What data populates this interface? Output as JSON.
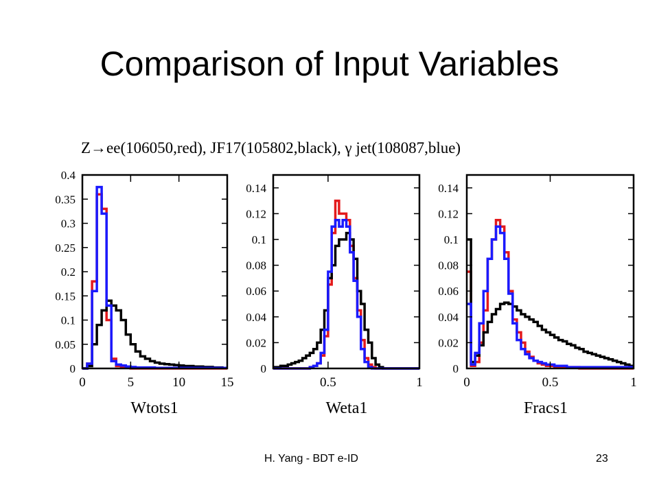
{
  "slide": {
    "title": "Comparison of Input Variables",
    "footer_left": "H. Yang - BDT e-ID",
    "page_number": "23"
  },
  "figure_header": "Z→ee(106050,red), JF17(105802,black), γ jet(108087,blue)",
  "chart_data": [
    {
      "type": "line",
      "xlabel": "Wtots1",
      "xlim": [
        0,
        15
      ],
      "ylim": [
        0,
        0.4
      ],
      "xticks": [
        0,
        5,
        10,
        15
      ],
      "yticks": [
        0,
        0.05,
        0.1,
        0.15,
        0.2,
        0.25,
        0.3,
        0.35,
        0.4
      ],
      "bin_edges": [
        0,
        0.5,
        1,
        1.5,
        2,
        2.5,
        3,
        3.5,
        4,
        4.5,
        5,
        5.5,
        6,
        6.5,
        7,
        7.5,
        8,
        8.5,
        9,
        9.5,
        10,
        10.5,
        11,
        11.5,
        12,
        12.5,
        13,
        13.5,
        14,
        14.5,
        15
      ],
      "series": [
        {
          "color": "#e31a1c",
          "values": [
            0,
            0.01,
            0.18,
            0.36,
            0.33,
            0.1,
            0.02,
            0.005,
            0.002,
            0.001,
            0,
            0,
            0,
            0,
            0,
            0,
            0,
            0,
            0,
            0,
            0,
            0,
            0,
            0,
            0,
            0,
            0,
            0,
            0,
            0
          ]
        },
        {
          "color": "#000000",
          "values": [
            0,
            0.005,
            0.05,
            0.09,
            0.12,
            0.14,
            0.13,
            0.12,
            0.1,
            0.07,
            0.05,
            0.035,
            0.025,
            0.02,
            0.015,
            0.012,
            0.01,
            0.009,
            0.008,
            0.007,
            0.006,
            0.005,
            0.005,
            0.004,
            0.004,
            0.003,
            0.003,
            0.002,
            0.002,
            0.001
          ]
        },
        {
          "color": "#1a1aff",
          "values": [
            0,
            0.01,
            0.16,
            0.375,
            0.32,
            0.13,
            0.015,
            0.008,
            0.006,
            0.004,
            0.003,
            0.002,
            0.002,
            0.002,
            0.002,
            0.001,
            0.001,
            0.001,
            0.001,
            0.001,
            0.001,
            0.001,
            0.001,
            0.001,
            0.001,
            0.001,
            0.001,
            0.001,
            0.001,
            0.001
          ]
        }
      ]
    },
    {
      "type": "line",
      "xlabel": "Weta1",
      "xlim": [
        0.2,
        1.0
      ],
      "ylim": [
        0,
        0.15
      ],
      "xticks": [
        0.5,
        1.0
      ],
      "xtick_labels": [
        "0.5",
        "1"
      ],
      "yticks": [
        0,
        0.02,
        0.04,
        0.06,
        0.08,
        0.1,
        0.12,
        0.14
      ],
      "bin_edges": [
        0.2,
        0.22,
        0.24,
        0.26,
        0.28,
        0.3,
        0.32,
        0.34,
        0.36,
        0.38,
        0.4,
        0.42,
        0.44,
        0.46,
        0.48,
        0.5,
        0.52,
        0.54,
        0.56,
        0.58,
        0.6,
        0.62,
        0.64,
        0.66,
        0.68,
        0.7,
        0.72,
        0.74,
        0.76,
        0.78,
        0.8,
        0.82,
        0.84,
        0.86,
        0.88,
        0.9,
        0.92,
        0.94,
        0.96,
        0.98,
        1.0
      ],
      "series": [
        {
          "color": "#e31a1c",
          "values": [
            0,
            0,
            0,
            0,
            0,
            0,
            0,
            0,
            0,
            0,
            0.001,
            0.002,
            0.004,
            0.01,
            0.025,
            0.065,
            0.105,
            0.13,
            0.12,
            0.12,
            0.115,
            0.095,
            0.07,
            0.045,
            0.022,
            0.008,
            0.003,
            0.001,
            0,
            0,
            0,
            0,
            0,
            0,
            0,
            0,
            0,
            0,
            0,
            0
          ]
        },
        {
          "color": "#000000",
          "values": [
            0.001,
            0.001,
            0.002,
            0.002,
            0.003,
            0.004,
            0.005,
            0.006,
            0.008,
            0.01,
            0.012,
            0.015,
            0.02,
            0.03,
            0.045,
            0.07,
            0.08,
            0.095,
            0.1,
            0.1,
            0.105,
            0.1,
            0.085,
            0.06,
            0.05,
            0.03,
            0.02,
            0.008,
            0.003,
            0.001,
            0,
            0,
            0,
            0,
            0,
            0,
            0,
            0,
            0,
            0
          ]
        },
        {
          "color": "#1a1aff",
          "values": [
            0,
            0,
            0,
            0,
            0,
            0,
            0,
            0,
            0,
            0,
            0.001,
            0.002,
            0.004,
            0.012,
            0.03,
            0.075,
            0.11,
            0.115,
            0.11,
            0.115,
            0.11,
            0.09,
            0.068,
            0.04,
            0.015,
            0.005,
            0.001,
            0,
            0,
            0,
            0,
            0,
            0,
            0,
            0,
            0,
            0,
            0,
            0,
            0
          ]
        }
      ]
    },
    {
      "type": "line",
      "xlabel": "Fracs1",
      "xlim": [
        0,
        1
      ],
      "ylim": [
        0,
        0.15
      ],
      "xticks": [
        0,
        0.5,
        1
      ],
      "xtick_labels": [
        "0",
        "0.5",
        "1"
      ],
      "yticks": [
        0,
        0.02,
        0.04,
        0.06,
        0.08,
        0.1,
        0.12,
        0.14
      ],
      "bin_edges": [
        0,
        0.025,
        0.05,
        0.075,
        0.1,
        0.125,
        0.15,
        0.175,
        0.2,
        0.225,
        0.25,
        0.275,
        0.3,
        0.325,
        0.35,
        0.375,
        0.4,
        0.425,
        0.45,
        0.475,
        0.5,
        0.525,
        0.55,
        0.575,
        0.6,
        0.625,
        0.65,
        0.675,
        0.7,
        0.725,
        0.75,
        0.775,
        0.8,
        0.825,
        0.85,
        0.875,
        0.9,
        0.925,
        0.95,
        0.975,
        1.0
      ],
      "series": [
        {
          "color": "#e31a1c",
          "values": [
            0.075,
            0.002,
            0.005,
            0.02,
            0.045,
            0.085,
            0.1,
            0.115,
            0.11,
            0.09,
            0.06,
            0.038,
            0.028,
            0.02,
            0.013,
            0.009,
            0.006,
            0.004,
            0.003,
            0.002,
            0.002,
            0.001,
            0.001,
            0.001,
            0.001,
            0.001,
            0.001,
            0,
            0,
            0,
            0,
            0,
            0,
            0,
            0,
            0,
            0,
            0,
            0,
            0
          ]
        },
        {
          "color": "#000000",
          "values": [
            0.1,
            0.005,
            0.01,
            0.018,
            0.028,
            0.036,
            0.042,
            0.046,
            0.05,
            0.051,
            0.05,
            0.048,
            0.045,
            0.042,
            0.04,
            0.038,
            0.036,
            0.033,
            0.03,
            0.028,
            0.026,
            0.024,
            0.022,
            0.021,
            0.019,
            0.018,
            0.016,
            0.015,
            0.013,
            0.012,
            0.011,
            0.01,
            0.009,
            0.008,
            0.007,
            0.006,
            0.005,
            0.004,
            0.003,
            0.002
          ]
        },
        {
          "color": "#1a1aff",
          "values": [
            0.05,
            0.003,
            0.012,
            0.035,
            0.06,
            0.085,
            0.1,
            0.11,
            0.105,
            0.085,
            0.058,
            0.035,
            0.022,
            0.015,
            0.011,
            0.008,
            0.006,
            0.005,
            0.004,
            0.003,
            0.003,
            0.002,
            0.002,
            0.002,
            0.001,
            0.001,
            0.001,
            0.001,
            0.001,
            0.001,
            0.001,
            0.001,
            0.001,
            0.001,
            0.001,
            0.001,
            0.001,
            0.001,
            0.001,
            0.001
          ]
        }
      ]
    }
  ]
}
